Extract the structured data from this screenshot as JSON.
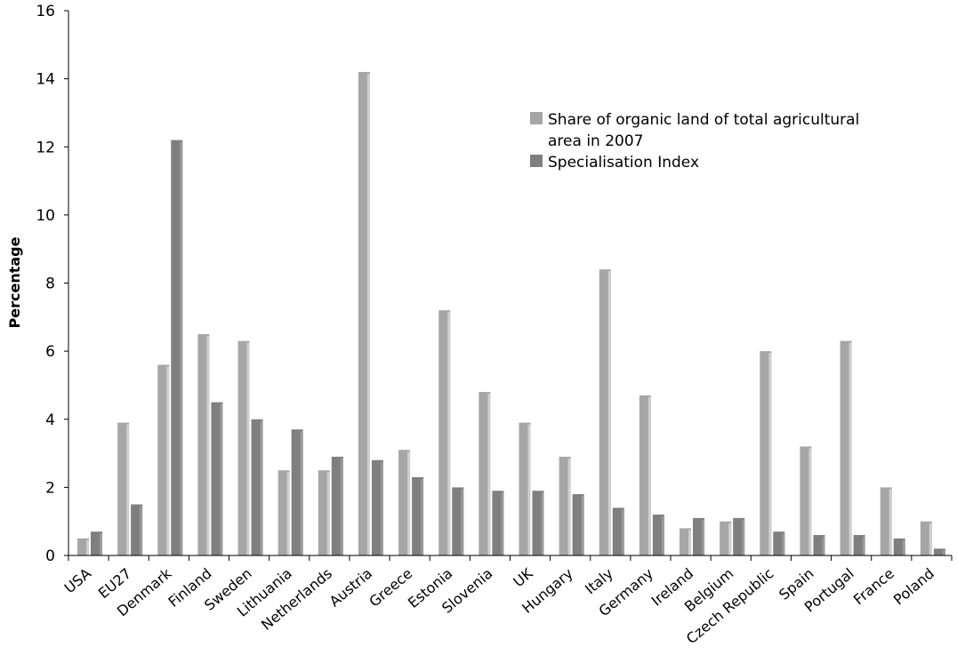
{
  "chart_data": {
    "type": "bar",
    "title": "",
    "xlabel": "",
    "ylabel": "Percentage",
    "ylim": [
      0,
      16
    ],
    "yticks": [
      0,
      2,
      4,
      6,
      8,
      10,
      12,
      14,
      16
    ],
    "grid": false,
    "legend_position": "top-right",
    "categories": [
      "USA",
      "EU27",
      "Denmark",
      "Finland",
      "Sweden",
      "Lithuania",
      "Netherlands",
      "Austria",
      "Greece",
      "Estonia",
      "Slovenia",
      "UK",
      "Hungary",
      "Italy",
      "Germany",
      "Ireland",
      "Belgium",
      "Czech Republic",
      "Spain",
      "Portugal",
      "France",
      "Poland"
    ],
    "series": [
      {
        "name": "Share of organic land of total agricultural area in 2007",
        "color": "#a6a6a6",
        "values": [
          0.5,
          3.9,
          5.6,
          6.5,
          6.3,
          2.5,
          2.5,
          14.2,
          3.1,
          7.2,
          4.8,
          3.9,
          2.9,
          8.4,
          4.7,
          0.8,
          1.0,
          6.0,
          3.2,
          6.3,
          2.0,
          1.0
        ]
      },
      {
        "name": "Specialisation Index",
        "color": "#7f7f7f",
        "values": [
          0.7,
          1.5,
          12.2,
          4.5,
          4.0,
          3.7,
          2.9,
          2.8,
          2.3,
          2.0,
          1.9,
          1.9,
          1.8,
          1.4,
          1.2,
          1.1,
          1.1,
          0.7,
          0.6,
          0.6,
          0.5,
          0.2
        ]
      }
    ],
    "legend_lines": [
      [
        "Share of organic land of total agricultural",
        "area in 2007"
      ],
      [
        "Specialisation Index"
      ]
    ]
  }
}
